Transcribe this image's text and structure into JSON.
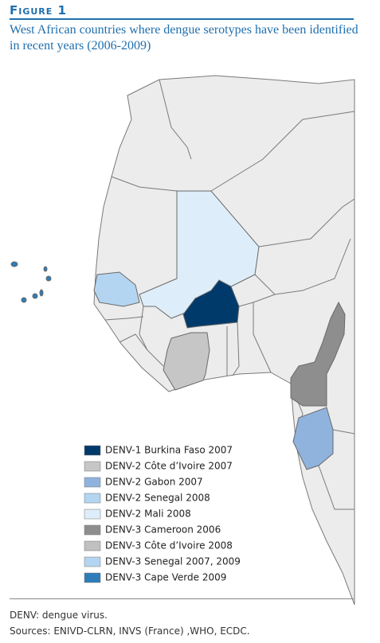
{
  "header": {
    "label": "Figure 1",
    "title": "West African countries where dengue serotypes have been identified in recent years (2006-2009)"
  },
  "legend": [
    {
      "label": "DENV-1 Burkina Faso  2007",
      "color": "#003a6b"
    },
    {
      "label": "DENV-2 Côte d’Ivoire 2007",
      "color": "#c6c6c6"
    },
    {
      "label": "DENV-2 Gabon 2007",
      "color": "#8fb3dd"
    },
    {
      "label": "DENV-2 Senegal 2008",
      "color": "#b3d5f1"
    },
    {
      "label": "DENV-2 Mali 2008",
      "color": "#ddedf9"
    },
    {
      "label": "DENV-3 Cameroon 2006",
      "color": "#8e8e8e"
    },
    {
      "label": "DENV-3 Côte d’Ivoire 2008",
      "color": "#c0c0c0"
    },
    {
      "label": "DENV-3 Senegal 2007, 2009",
      "color": "#b3d5f1"
    },
    {
      "label": "DENV-3 Cape Verde 2009",
      "color": "#2d7db8"
    }
  ],
  "footnote": {
    "abbreviation": "DENV: dengue virus.",
    "sources": "Sources: ENIVD-CLRN, INVS (France) ,WHO, ECDC."
  }
}
